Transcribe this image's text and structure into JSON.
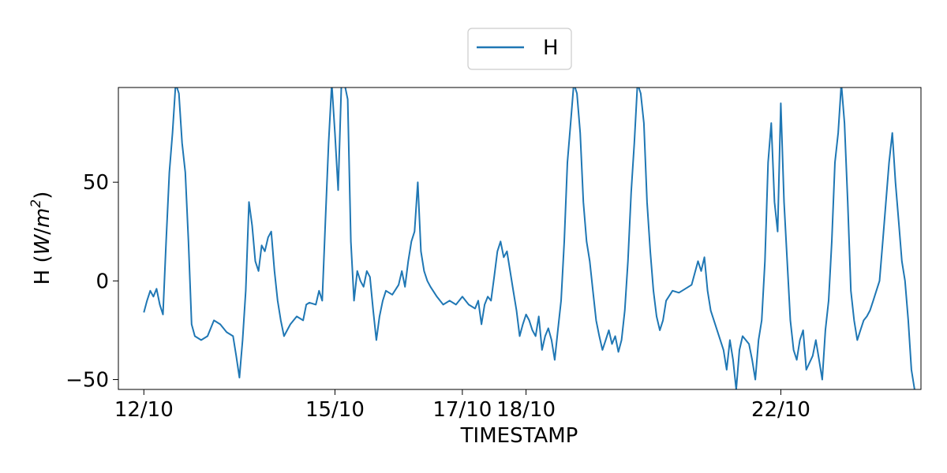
{
  "chart_data": {
    "type": "line",
    "xlabel": "TIMESTAMP",
    "ylabel": "H (W/m²)",
    "ylabel_parts": {
      "prefix": "H (",
      "unit_w": "W",
      "unit_slash": "/",
      "unit_m": "m",
      "unit_exp": "2",
      "suffix": ")"
    },
    "xlim_days": [
      11.6,
      24.2
    ],
    "ylim": [
      -55,
      98
    ],
    "x_ticks": [
      {
        "label": "12/10",
        "day": 12
      },
      {
        "label": "15/10",
        "day": 15
      },
      {
        "label": "17/10",
        "day": 17
      },
      {
        "label": "18/10",
        "day": 18
      },
      {
        "label": "22/10",
        "day": 22
      }
    ],
    "y_ticks": [
      {
        "label": "50",
        "value": 50
      },
      {
        "label": "0",
        "value": 0
      },
      {
        "label": "−50",
        "value": -50
      }
    ],
    "legend": {
      "position": "top-center",
      "entries": [
        "H"
      ]
    },
    "grid": false,
    "series": [
      {
        "name": "H",
        "color": "#1f77b4",
        "points": [
          [
            12.0,
            -16
          ],
          [
            12.05,
            -10
          ],
          [
            12.1,
            -5
          ],
          [
            12.15,
            -8
          ],
          [
            12.2,
            -4
          ],
          [
            12.25,
            -12
          ],
          [
            12.3,
            -17
          ],
          [
            12.35,
            20
          ],
          [
            12.4,
            55
          ],
          [
            12.45,
            75
          ],
          [
            12.5,
            100
          ],
          [
            12.55,
            95
          ],
          [
            12.6,
            70
          ],
          [
            12.65,
            55
          ],
          [
            12.7,
            20
          ],
          [
            12.75,
            -22
          ],
          [
            12.8,
            -28
          ],
          [
            12.9,
            -30
          ],
          [
            13.0,
            -28
          ],
          [
            13.1,
            -20
          ],
          [
            13.2,
            -22
          ],
          [
            13.3,
            -26
          ],
          [
            13.4,
            -28
          ],
          [
            13.45,
            -38
          ],
          [
            13.5,
            -49
          ],
          [
            13.55,
            -30
          ],
          [
            13.6,
            -5
          ],
          [
            13.65,
            40
          ],
          [
            13.7,
            28
          ],
          [
            13.75,
            10
          ],
          [
            13.8,
            5
          ],
          [
            13.85,
            18
          ],
          [
            13.9,
            15
          ],
          [
            13.95,
            22
          ],
          [
            14.0,
            25
          ],
          [
            14.05,
            5
          ],
          [
            14.1,
            -10
          ],
          [
            14.15,
            -20
          ],
          [
            14.2,
            -28
          ],
          [
            14.3,
            -22
          ],
          [
            14.4,
            -18
          ],
          [
            14.5,
            -20
          ],
          [
            14.55,
            -12
          ],
          [
            14.6,
            -11
          ],
          [
            14.7,
            -12
          ],
          [
            14.75,
            -5
          ],
          [
            14.8,
            -10
          ],
          [
            14.85,
            30
          ],
          [
            14.9,
            70
          ],
          [
            14.95,
            100
          ],
          [
            15.0,
            75
          ],
          [
            15.05,
            46
          ],
          [
            15.1,
            98
          ],
          [
            15.15,
            100
          ],
          [
            15.2,
            92
          ],
          [
            15.25,
            20
          ],
          [
            15.3,
            -10
          ],
          [
            15.35,
            5
          ],
          [
            15.4,
            0
          ],
          [
            15.45,
            -3
          ],
          [
            15.5,
            5
          ],
          [
            15.55,
            2
          ],
          [
            15.6,
            -15
          ],
          [
            15.65,
            -30
          ],
          [
            15.7,
            -18
          ],
          [
            15.75,
            -10
          ],
          [
            15.8,
            -5
          ],
          [
            15.9,
            -7
          ],
          [
            16.0,
            -2
          ],
          [
            16.05,
            5
          ],
          [
            16.1,
            -3
          ],
          [
            16.15,
            10
          ],
          [
            16.2,
            20
          ],
          [
            16.25,
            25
          ],
          [
            16.3,
            50
          ],
          [
            16.35,
            15
          ],
          [
            16.4,
            5
          ],
          [
            16.45,
            0
          ],
          [
            16.5,
            -3
          ],
          [
            16.6,
            -8
          ],
          [
            16.7,
            -12
          ],
          [
            16.8,
            -10
          ],
          [
            16.9,
            -12
          ],
          [
            17.0,
            -8
          ],
          [
            17.1,
            -12
          ],
          [
            17.2,
            -14
          ],
          [
            17.25,
            -10
          ],
          [
            17.3,
            -22
          ],
          [
            17.35,
            -12
          ],
          [
            17.4,
            -8
          ],
          [
            17.45,
            -10
          ],
          [
            17.5,
            2
          ],
          [
            17.55,
            15
          ],
          [
            17.6,
            20
          ],
          [
            17.65,
            12
          ],
          [
            17.7,
            15
          ],
          [
            17.75,
            5
          ],
          [
            17.8,
            -5
          ],
          [
            17.85,
            -15
          ],
          [
            17.9,
            -28
          ],
          [
            17.95,
            -22
          ],
          [
            18.0,
            -17
          ],
          [
            18.05,
            -20
          ],
          [
            18.1,
            -25
          ],
          [
            18.15,
            -28
          ],
          [
            18.2,
            -18
          ],
          [
            18.25,
            -35
          ],
          [
            18.3,
            -28
          ],
          [
            18.35,
            -24
          ],
          [
            18.4,
            -30
          ],
          [
            18.45,
            -40
          ],
          [
            18.5,
            -25
          ],
          [
            18.55,
            -10
          ],
          [
            18.6,
            20
          ],
          [
            18.65,
            60
          ],
          [
            18.7,
            80
          ],
          [
            18.75,
            100
          ],
          [
            18.8,
            95
          ],
          [
            18.85,
            75
          ],
          [
            18.9,
            40
          ],
          [
            18.95,
            20
          ],
          [
            19.0,
            10
          ],
          [
            19.05,
            -5
          ],
          [
            19.1,
            -20
          ],
          [
            19.15,
            -28
          ],
          [
            19.2,
            -35
          ],
          [
            19.25,
            -30
          ],
          [
            19.3,
            -25
          ],
          [
            19.35,
            -32
          ],
          [
            19.4,
            -28
          ],
          [
            19.45,
            -36
          ],
          [
            19.5,
            -30
          ],
          [
            19.55,
            -15
          ],
          [
            19.6,
            10
          ],
          [
            19.65,
            45
          ],
          [
            19.7,
            70
          ],
          [
            19.75,
            100
          ],
          [
            19.8,
            95
          ],
          [
            19.85,
            80
          ],
          [
            19.9,
            40
          ],
          [
            19.95,
            15
          ],
          [
            20.0,
            -5
          ],
          [
            20.05,
            -18
          ],
          [
            20.1,
            -25
          ],
          [
            20.15,
            -20
          ],
          [
            20.2,
            -10
          ],
          [
            20.3,
            -5
          ],
          [
            20.4,
            -6
          ],
          [
            20.5,
            -4
          ],
          [
            20.6,
            -2
          ],
          [
            20.7,
            10
          ],
          [
            20.75,
            5
          ],
          [
            20.8,
            12
          ],
          [
            20.85,
            -5
          ],
          [
            20.9,
            -15
          ],
          [
            21.0,
            -25
          ],
          [
            21.1,
            -35
          ],
          [
            21.15,
            -45
          ],
          [
            21.2,
            -30
          ],
          [
            21.25,
            -40
          ],
          [
            21.3,
            -55
          ],
          [
            21.35,
            -35
          ],
          [
            21.4,
            -28
          ],
          [
            21.5,
            -32
          ],
          [
            21.55,
            -40
          ],
          [
            21.6,
            -50
          ],
          [
            21.65,
            -30
          ],
          [
            21.7,
            -20
          ],
          [
            21.75,
            10
          ],
          [
            21.8,
            60
          ],
          [
            21.85,
            80
          ],
          [
            21.9,
            40
          ],
          [
            21.95,
            25
          ],
          [
            22.0,
            90
          ],
          [
            22.05,
            40
          ],
          [
            22.1,
            10
          ],
          [
            22.15,
            -20
          ],
          [
            22.2,
            -35
          ],
          [
            22.25,
            -40
          ],
          [
            22.3,
            -30
          ],
          [
            22.35,
            -25
          ],
          [
            22.4,
            -45
          ],
          [
            22.5,
            -38
          ],
          [
            22.55,
            -30
          ],
          [
            22.6,
            -40
          ],
          [
            22.65,
            -50
          ],
          [
            22.7,
            -25
          ],
          [
            22.75,
            -10
          ],
          [
            22.8,
            20
          ],
          [
            22.85,
            60
          ],
          [
            22.9,
            75
          ],
          [
            22.95,
            100
          ],
          [
            23.0,
            80
          ],
          [
            23.05,
            40
          ],
          [
            23.1,
            -5
          ],
          [
            23.15,
            -20
          ],
          [
            23.2,
            -30
          ],
          [
            23.25,
            -25
          ],
          [
            23.3,
            -20
          ],
          [
            23.35,
            -18
          ],
          [
            23.4,
            -15
          ],
          [
            23.45,
            -10
          ],
          [
            23.5,
            -5
          ],
          [
            23.55,
            0
          ],
          [
            23.6,
            20
          ],
          [
            23.65,
            40
          ],
          [
            23.7,
            60
          ],
          [
            23.75,
            75
          ],
          [
            23.8,
            50
          ],
          [
            23.85,
            30
          ],
          [
            23.9,
            10
          ],
          [
            23.95,
            0
          ],
          [
            24.0,
            -20
          ],
          [
            24.05,
            -45
          ],
          [
            24.1,
            -55
          ]
        ]
      }
    ]
  }
}
